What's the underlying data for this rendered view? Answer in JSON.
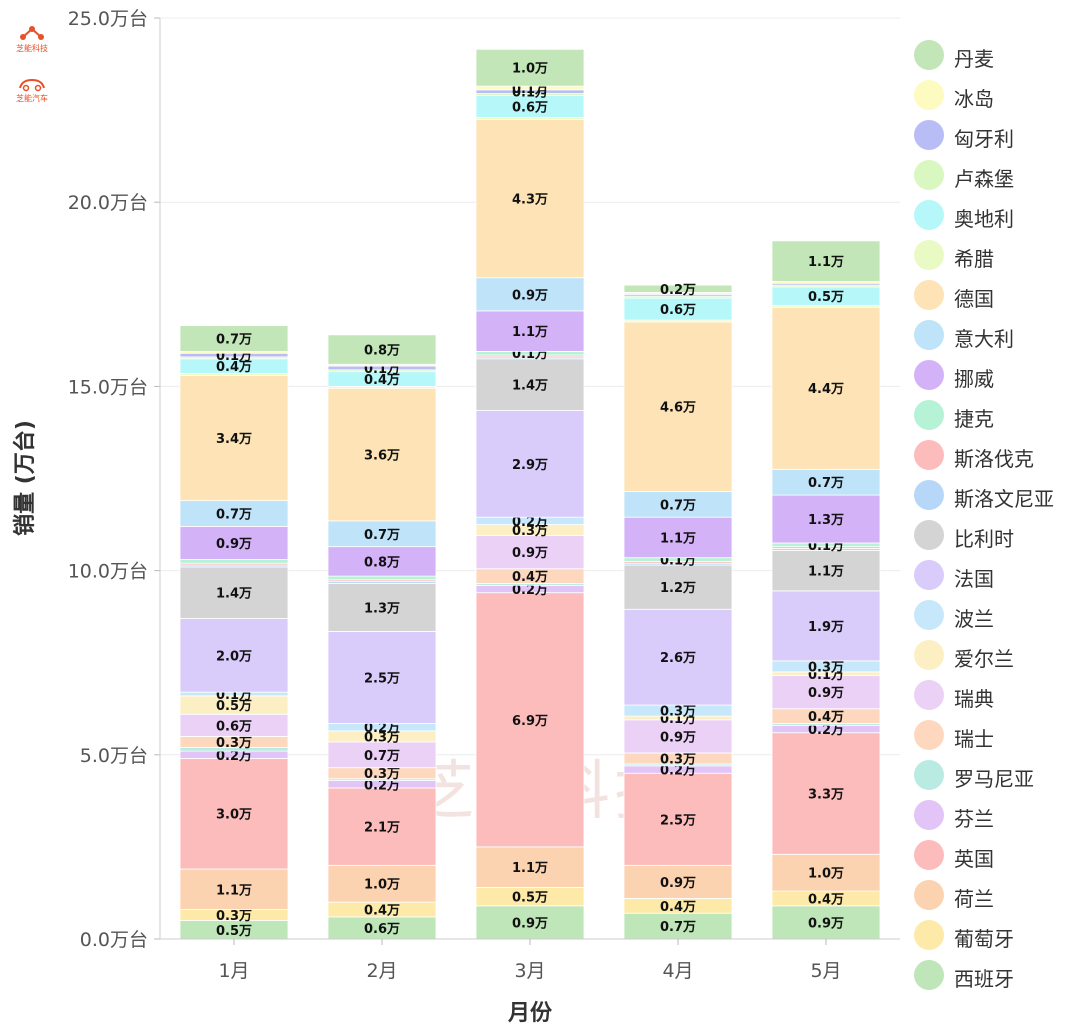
{
  "brand": {
    "top_text": "芝能科技",
    "bottom_text": "芝能汽车"
  },
  "watermark": "芝能科技",
  "chart_data": {
    "type": "bar",
    "stacked": true,
    "xlabel": "月份",
    "ylabel": "销量 (万台)",
    "ylim": [
      0,
      25
    ],
    "yticks": [
      "0.0万台",
      "5.0万台",
      "10.0万台",
      "15.0万台",
      "20.0万台",
      "25.0万台"
    ],
    "grid": true,
    "legend_position": "right",
    "categories": [
      "1月",
      "2月",
      "3月",
      "4月",
      "5月"
    ],
    "series": [
      {
        "name": "西班牙",
        "color": "#bfe6b8",
        "values": [
          0.5,
          0.6,
          0.9,
          0.7,
          0.9
        ],
        "labels": [
          "0.5万",
          "0.6万",
          "0.9万",
          "0.7万",
          "0.9万"
        ]
      },
      {
        "name": "葡萄牙",
        "color": "#fdeaa8",
        "values": [
          0.3,
          0.4,
          0.5,
          0.4,
          0.4
        ],
        "labels": [
          "0.3万",
          "0.4万",
          "0.5万",
          "0.4万",
          "0.4万"
        ]
      },
      {
        "name": "荷兰",
        "color": "#fcd3b0",
        "values": [
          1.1,
          1.0,
          1.1,
          0.9,
          1.0
        ],
        "labels": [
          "1.1万",
          "1.0万",
          "1.1万",
          "0.9万",
          "1.0万"
        ]
      },
      {
        "name": "英国",
        "color": "#fdbcbc",
        "values": [
          3.0,
          2.1,
          6.9,
          2.5,
          3.3
        ],
        "labels": [
          "3.0万",
          "2.1万",
          "6.9万",
          "2.5万",
          "3.3万"
        ]
      },
      {
        "name": "芬兰",
        "color": "#e2c4f6",
        "values": [
          0.2,
          0.2,
          0.2,
          0.2,
          0.2
        ],
        "labels": [
          "0.2万",
          "0.2万",
          "0.2万",
          "0.2万",
          "0.2万"
        ]
      },
      {
        "name": "罗马尼亚",
        "color": "#b9ebe3",
        "values": [
          0.1,
          0.05,
          0.05,
          0.05,
          0.05
        ],
        "labels": [
          "",
          "",
          "",
          "",
          ""
        ]
      },
      {
        "name": "瑞士",
        "color": "#fdd8bf",
        "values": [
          0.3,
          0.3,
          0.4,
          0.3,
          0.4
        ],
        "labels": [
          "0.3万",
          "0.3万",
          "0.4万",
          "0.3万",
          "0.4万"
        ]
      },
      {
        "name": "瑞典",
        "color": "#ecd1f7",
        "values": [
          0.6,
          0.7,
          0.9,
          0.9,
          0.9
        ],
        "labels": [
          "0.6万",
          "0.7万",
          "0.9万",
          "0.9万",
          "0.9万"
        ]
      },
      {
        "name": "爱尔兰",
        "color": "#fdefc4",
        "values": [
          0.5,
          0.3,
          0.3,
          0.1,
          0.1
        ],
        "labels": [
          "0.5万",
          "0.3万",
          "0.3万",
          "0.1万",
          "0.1万"
        ]
      },
      {
        "name": "波兰",
        "color": "#c6e8fa",
        "values": [
          0.1,
          0.2,
          0.2,
          0.3,
          0.3
        ],
        "labels": [
          "0.1万",
          "0.2万",
          "0.2万",
          "0.3万",
          "0.3万"
        ]
      },
      {
        "name": "法国",
        "color": "#d9ccfb",
        "values": [
          2.0,
          2.5,
          2.9,
          2.6,
          1.9
        ],
        "labels": [
          "2.0万",
          "2.5万",
          "2.9万",
          "2.6万",
          "1.9万"
        ]
      },
      {
        "name": "比利时",
        "color": "#d4d4d4",
        "values": [
          1.4,
          1.3,
          1.4,
          1.2,
          1.1
        ],
        "labels": [
          "1.4万",
          "1.3万",
          "1.4万",
          "1.2万",
          "1.1万"
        ]
      },
      {
        "name": "斯洛文尼亚",
        "color": "#b7d7f8",
        "values": [
          0.05,
          0.05,
          0.05,
          0.05,
          0.05
        ],
        "labels": [
          "",
          "",
          "",
          "",
          ""
        ]
      },
      {
        "name": "斯洛伐克",
        "color": "#fdbcbc",
        "values": [
          0.05,
          0.05,
          0.05,
          0.05,
          0.05
        ],
        "labels": [
          "",
          "",
          "",
          "",
          ""
        ]
      },
      {
        "name": "捷克",
        "color": "#b6f2d6",
        "values": [
          0.1,
          0.1,
          0.1,
          0.1,
          0.1
        ],
        "labels": [
          "",
          "",
          "0.1万",
          "0.1万",
          "0.1万"
        ]
      },
      {
        "name": "挪威",
        "color": "#d4b2f8",
        "values": [
          0.9,
          0.8,
          1.1,
          1.1,
          1.3
        ],
        "labels": [
          "0.9万",
          "0.8万",
          "1.1万",
          "1.1万",
          "1.3万"
        ]
      },
      {
        "name": "意大利",
        "color": "#bfe3f8",
        "values": [
          0.7,
          0.7,
          0.9,
          0.7,
          0.7
        ],
        "labels": [
          "0.7万",
          "0.7万",
          "0.9万",
          "0.7万",
          "0.7万"
        ]
      },
      {
        "name": "德国",
        "color": "#fde3b5",
        "values": [
          3.4,
          3.6,
          4.3,
          4.6,
          4.4
        ],
        "labels": [
          "3.4万",
          "3.6万",
          "4.3万",
          "4.6万",
          "4.4万"
        ]
      },
      {
        "name": "希腊",
        "color": "#eafac4",
        "values": [
          0.05,
          0.05,
          0.05,
          0.05,
          0.05
        ],
        "labels": [
          "",
          "",
          "",
          "",
          ""
        ]
      },
      {
        "name": "奥地利",
        "color": "#b6f7fa",
        "values": [
          0.4,
          0.4,
          0.6,
          0.6,
          0.5
        ],
        "labels": [
          "0.4万",
          "0.4万",
          "0.6万",
          "0.6万",
          "0.5万"
        ]
      },
      {
        "name": "卢森堡",
        "color": "#d9f7c0",
        "values": [
          0.05,
          0.05,
          0.05,
          0.05,
          0.05
        ],
        "labels": [
          "",
          "",
          "",
          "",
          ""
        ]
      },
      {
        "name": "匈牙利",
        "color": "#b9bdf5",
        "values": [
          0.1,
          0.1,
          0.1,
          0.05,
          0.05
        ],
        "labels": [
          "0.1万",
          "0.1万",
          "0.1万",
          "",
          ""
        ]
      },
      {
        "name": "冰岛",
        "color": "#fdfbc0",
        "values": [
          0.05,
          0.05,
          0.1,
          0.05,
          0.05
        ],
        "labels": [
          "",
          "",
          "0.1万",
          "",
          ""
        ]
      },
      {
        "name": "丹麦",
        "color": "#c2e6b8",
        "values": [
          0.7,
          0.8,
          1.0,
          0.2,
          1.1
        ],
        "labels": [
          "0.7万",
          "0.8万",
          "1.0万",
          "0.2万",
          "1.1万"
        ]
      }
    ],
    "legend_order": [
      "丹麦",
      "冰岛",
      "匈牙利",
      "卢森堡",
      "奥地利",
      "希腊",
      "德国",
      "意大利",
      "挪威",
      "捷克",
      "斯洛伐克",
      "斯洛文尼亚",
      "比利时",
      "法国",
      "波兰",
      "爱尔兰",
      "瑞典",
      "瑞士",
      "罗马尼亚",
      "芬兰",
      "英国",
      "荷兰",
      "葡萄牙",
      "西班牙"
    ]
  }
}
